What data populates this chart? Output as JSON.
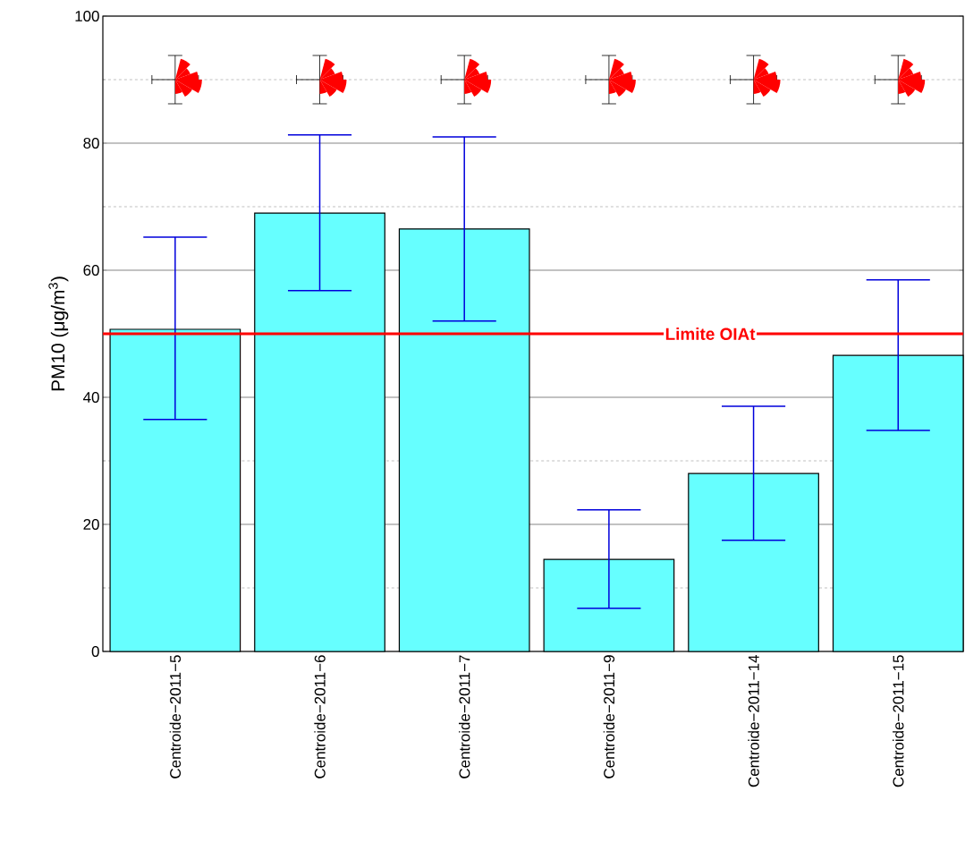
{
  "chart_data": {
    "type": "bar",
    "ylabel": "PM10 (μg/m$^{3}$)",
    "categories": [
      "Centroide−2011−5",
      "Centroide−2011−6",
      "Centroide−2011−7",
      "Centroide−2011−9",
      "Centroide−2011−14",
      "Centroide−2011−15"
    ],
    "values": [
      50.7,
      69.0,
      66.5,
      14.5,
      28.0,
      46.6
    ],
    "errors": [
      [
        36.5,
        65.2
      ],
      [
        56.8,
        81.3
      ],
      [
        52.0,
        81.0
      ],
      [
        6.8,
        22.3
      ],
      [
        17.5,
        38.6
      ],
      [
        34.8,
        58.5
      ]
    ],
    "color": "#66ffff",
    "ylim": [
      0,
      100
    ],
    "yticks": [
      0,
      20,
      40,
      60,
      80,
      100
    ],
    "grid": true,
    "ref_lines": [
      {
        "axis": "y",
        "value": 50,
        "label": "Limite OIAt",
        "color": "#ff0000"
      }
    ]
  }
}
